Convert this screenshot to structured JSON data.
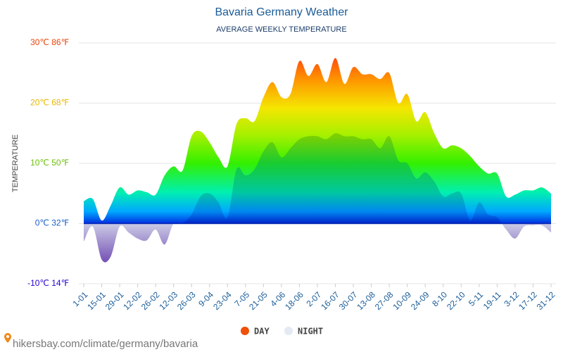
{
  "chart_data": {
    "type": "area",
    "title": "Bavaria Germany Weather",
    "subtitle": "AVERAGE WEEKLY TEMPERATURE",
    "ylabel": "TEMPERATURE",
    "categories": [
      "1-01",
      null,
      "15-01",
      null,
      "29-01",
      null,
      "12-02",
      null,
      "26-02",
      null,
      "12-03",
      null,
      "26-03",
      null,
      "9-04",
      null,
      "23-04",
      null,
      "7-05",
      null,
      "21-05",
      null,
      "4-06",
      null,
      "18-06",
      null,
      "2-07",
      null,
      "16-07",
      null,
      "30-07",
      null,
      "13-08",
      null,
      "27-08",
      null,
      "10-09",
      null,
      "24-09",
      null,
      "8-10",
      null,
      "22-10",
      null,
      "5-11",
      null,
      "19-11",
      null,
      "3-12",
      null,
      "17-12",
      null,
      "31-12"
    ],
    "series": [
      {
        "name": "DAY",
        "color": "#f0500a",
        "values": [
          3.7,
          4.1,
          0.5,
          3,
          6,
          4.8,
          5.5,
          5.2,
          4.8,
          8,
          9.5,
          8.8,
          14.5,
          15.3,
          13.5,
          11,
          9.5,
          16.5,
          17.5,
          17,
          21,
          23.5,
          21,
          21.5,
          27,
          24.5,
          26.5,
          23.5,
          27.5,
          23.2,
          26,
          24.8,
          24.8,
          24,
          25,
          20,
          21.5,
          17,
          18.5,
          15,
          12.5,
          13,
          12.5,
          11.2,
          9.5,
          8.3,
          8.3,
          4.5,
          4.8,
          5.5,
          5.5,
          6,
          5
        ]
      },
      {
        "name": "NIGHT",
        "color": "#e4e9f3",
        "values": [
          -3,
          -0.5,
          -6,
          -5.5,
          -0.5,
          -1.5,
          -2.5,
          -2.8,
          -1,
          -3.5,
          0,
          0,
          1.5,
          4.5,
          5,
          3.5,
          1,
          9,
          8,
          9,
          12,
          13.5,
          11,
          12.5,
          14,
          14.5,
          14.5,
          14,
          15,
          14.5,
          14.5,
          14,
          14,
          12.5,
          14.5,
          10.5,
          10,
          7.5,
          8.5,
          7,
          4.5,
          5,
          5,
          0.5,
          3.5,
          1.5,
          1,
          -1,
          -2.5,
          -0.5,
          -0.3,
          -0.3,
          -1.5
        ]
      }
    ],
    "ylim": [
      -10,
      30
    ],
    "yticks": [
      {
        "value": -10,
        "label": "-10℃ 14℉"
      },
      {
        "value": 0,
        "label": "0℃ 32℉"
      },
      {
        "value": 10,
        "label": "10℃ 50℉"
      },
      {
        "value": 20,
        "label": "20℃ 68℉"
      },
      {
        "value": 30,
        "label": "30℃ 86℉"
      }
    ],
    "ytick_colors": [
      "#2400d0",
      "#1a5fc8",
      "#6cbf0a",
      "#e8b800",
      "#e8440a"
    ],
    "grid": true,
    "legend": "bottom",
    "source": "hikersbay.com/climate/germany/bavaria"
  }
}
